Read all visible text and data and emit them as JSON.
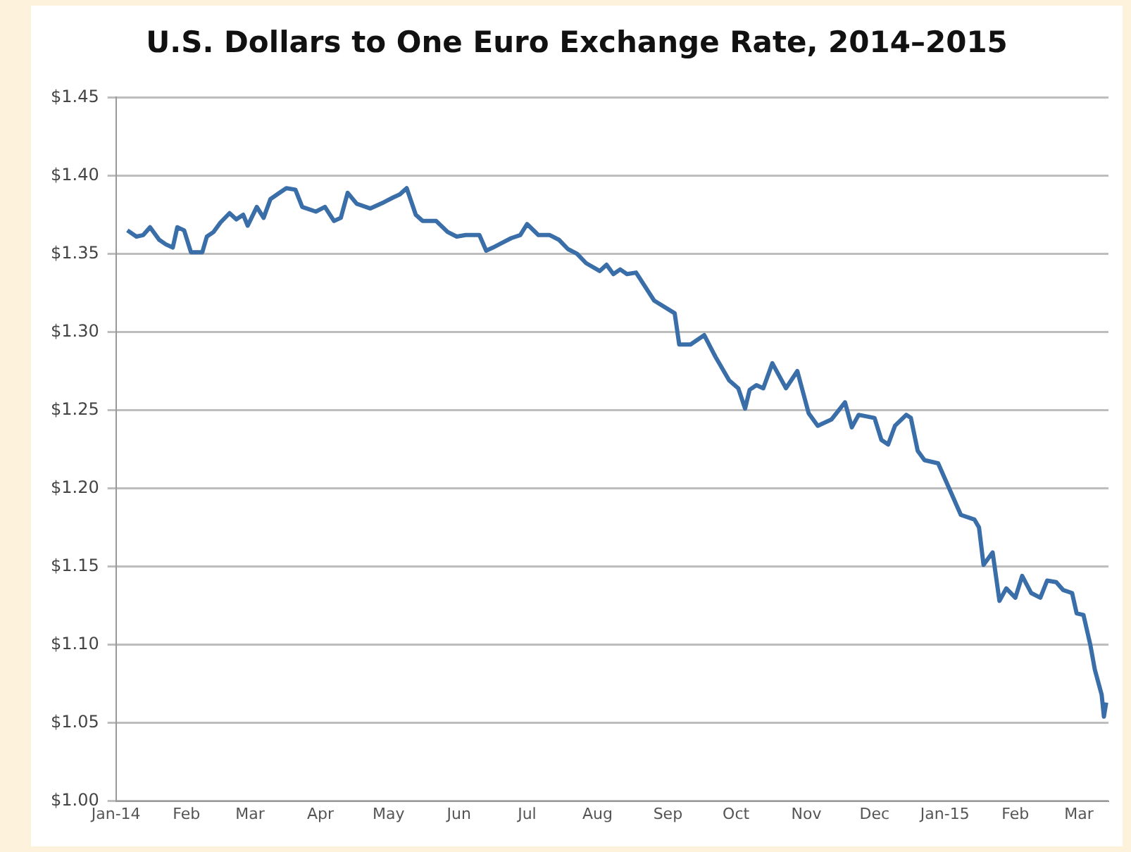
{
  "chart_data": {
    "type": "line",
    "title": "U.S. Dollars to One Euro Exchange Rate, 2014–2015",
    "x": [
      "2014-01-06",
      "2014-01-10",
      "2014-01-13",
      "2014-01-16",
      "2014-01-20",
      "2014-01-23",
      "2014-01-26",
      "2014-01-28",
      "2014-01-31",
      "2014-02-03",
      "2014-02-08",
      "2014-02-10",
      "2014-02-13",
      "2014-02-16",
      "2014-02-20",
      "2014-02-23",
      "2014-02-26",
      "2014-02-28",
      "2014-03-04",
      "2014-03-07",
      "2014-03-10",
      "2014-03-13",
      "2014-03-17",
      "2014-03-21",
      "2014-03-24",
      "2014-03-30",
      "2014-04-03",
      "2014-04-07",
      "2014-04-10",
      "2014-04-13",
      "2014-04-17",
      "2014-04-23",
      "2014-04-29",
      "2014-05-03",
      "2014-05-06",
      "2014-05-09",
      "2014-05-13",
      "2014-05-16",
      "2014-05-22",
      "2014-05-27",
      "2014-05-31",
      "2014-06-04",
      "2014-06-10",
      "2014-06-13",
      "2014-06-16",
      "2014-06-20",
      "2014-06-24",
      "2014-06-28",
      "2014-07-01",
      "2014-07-06",
      "2014-07-11",
      "2014-07-15",
      "2014-07-19",
      "2014-07-23",
      "2014-07-27",
      "2014-08-02",
      "2014-08-05",
      "2014-08-08",
      "2014-08-11",
      "2014-08-14",
      "2014-08-18",
      "2014-08-26",
      "2014-09-04",
      "2014-09-06",
      "2014-09-11",
      "2014-09-17",
      "2014-09-22",
      "2014-09-28",
      "2014-10-02",
      "2014-10-05",
      "2014-10-07",
      "2014-10-10",
      "2014-10-13",
      "2014-10-17",
      "2014-10-23",
      "2014-10-28",
      "2014-11-02",
      "2014-11-06",
      "2014-11-12",
      "2014-11-18",
      "2014-11-21",
      "2014-11-24",
      "2014-12-01",
      "2014-12-04",
      "2014-12-07",
      "2014-12-10",
      "2014-12-15",
      "2014-12-17",
      "2014-12-20",
      "2014-12-23",
      "2014-12-29",
      "2015-01-08",
      "2015-01-14",
      "2015-01-16",
      "2015-01-18",
      "2015-01-22",
      "2015-01-25",
      "2015-01-28",
      "2015-02-01",
      "2015-02-04",
      "2015-02-08",
      "2015-02-12",
      "2015-02-15",
      "2015-02-19",
      "2015-02-22",
      "2015-02-26",
      "2015-02-28",
      "2015-03-03",
      "2015-03-06",
      "2015-03-08",
      "2015-03-11",
      "2015-03-12",
      "2015-03-13"
    ],
    "series": [
      {
        "color": "#3a6ea8",
        "values": [
          1.365,
          1.361,
          1.362,
          1.367,
          1.359,
          1.356,
          1.354,
          1.367,
          1.365,
          1.351,
          1.351,
          1.361,
          1.364,
          1.37,
          1.376,
          1.372,
          1.375,
          1.368,
          1.38,
          1.373,
          1.385,
          1.388,
          1.392,
          1.391,
          1.38,
          1.377,
          1.38,
          1.371,
          1.373,
          1.389,
          1.382,
          1.379,
          1.383,
          1.386,
          1.388,
          1.392,
          1.375,
          1.371,
          1.371,
          1.364,
          1.361,
          1.362,
          1.362,
          1.352,
          1.354,
          1.357,
          1.36,
          1.362,
          1.369,
          1.362,
          1.362,
          1.359,
          1.353,
          1.35,
          1.344,
          1.339,
          1.343,
          1.337,
          1.34,
          1.337,
          1.338,
          1.32,
          1.312,
          1.292,
          1.292,
          1.298,
          1.284,
          1.269,
          1.264,
          1.251,
          1.263,
          1.266,
          1.264,
          1.28,
          1.264,
          1.275,
          1.248,
          1.24,
          1.244,
          1.255,
          1.239,
          1.247,
          1.245,
          1.231,
          1.228,
          1.24,
          1.247,
          1.245,
          1.224,
          1.218,
          1.216,
          1.183,
          1.18,
          1.175,
          1.151,
          1.159,
          1.128,
          1.136,
          1.13,
          1.144,
          1.133,
          1.13,
          1.141,
          1.14,
          1.135,
          1.133,
          1.12,
          1.119,
          1.1,
          1.084,
          1.068,
          1.054,
          1.063
        ]
      }
    ],
    "xlim": [
      "2014-01-01",
      "2015-03-14"
    ],
    "xticks": [
      {
        "value": "2014-01-01",
        "label": "Jan-14"
      },
      {
        "value": "2014-02-01",
        "label": "Feb"
      },
      {
        "value": "2014-03-01",
        "label": "Mar"
      },
      {
        "value": "2014-04-01",
        "label": "Apr"
      },
      {
        "value": "2014-05-01",
        "label": "May"
      },
      {
        "value": "2014-06-01",
        "label": "Jun"
      },
      {
        "value": "2014-07-01",
        "label": "Jul"
      },
      {
        "value": "2014-08-01",
        "label": "Aug"
      },
      {
        "value": "2014-09-01",
        "label": "Sep"
      },
      {
        "value": "2014-10-01",
        "label": "Oct"
      },
      {
        "value": "2014-11-01",
        "label": "Nov"
      },
      {
        "value": "2014-12-01",
        "label": "Dec"
      },
      {
        "value": "2015-01-01",
        "label": "Jan-15"
      },
      {
        "value": "2015-02-01",
        "label": "Feb"
      },
      {
        "value": "2015-03-01",
        "label": "Mar"
      }
    ],
    "ylim": [
      1.0,
      1.45
    ],
    "yticks": [
      {
        "value": 1.0,
        "label": "$1.00"
      },
      {
        "value": 1.05,
        "label": "$1.05"
      },
      {
        "value": 1.1,
        "label": "$1.10"
      },
      {
        "value": 1.15,
        "label": "$1.15"
      },
      {
        "value": 1.2,
        "label": "$1.20"
      },
      {
        "value": 1.25,
        "label": "$1.25"
      },
      {
        "value": 1.3,
        "label": "$1.30"
      },
      {
        "value": 1.35,
        "label": "$1.35"
      },
      {
        "value": 1.4,
        "label": "$1.40"
      },
      {
        "value": 1.45,
        "label": "$1.45"
      }
    ],
    "grid": "y",
    "legend": false,
    "marker": "none",
    "line_style": "solid"
  }
}
